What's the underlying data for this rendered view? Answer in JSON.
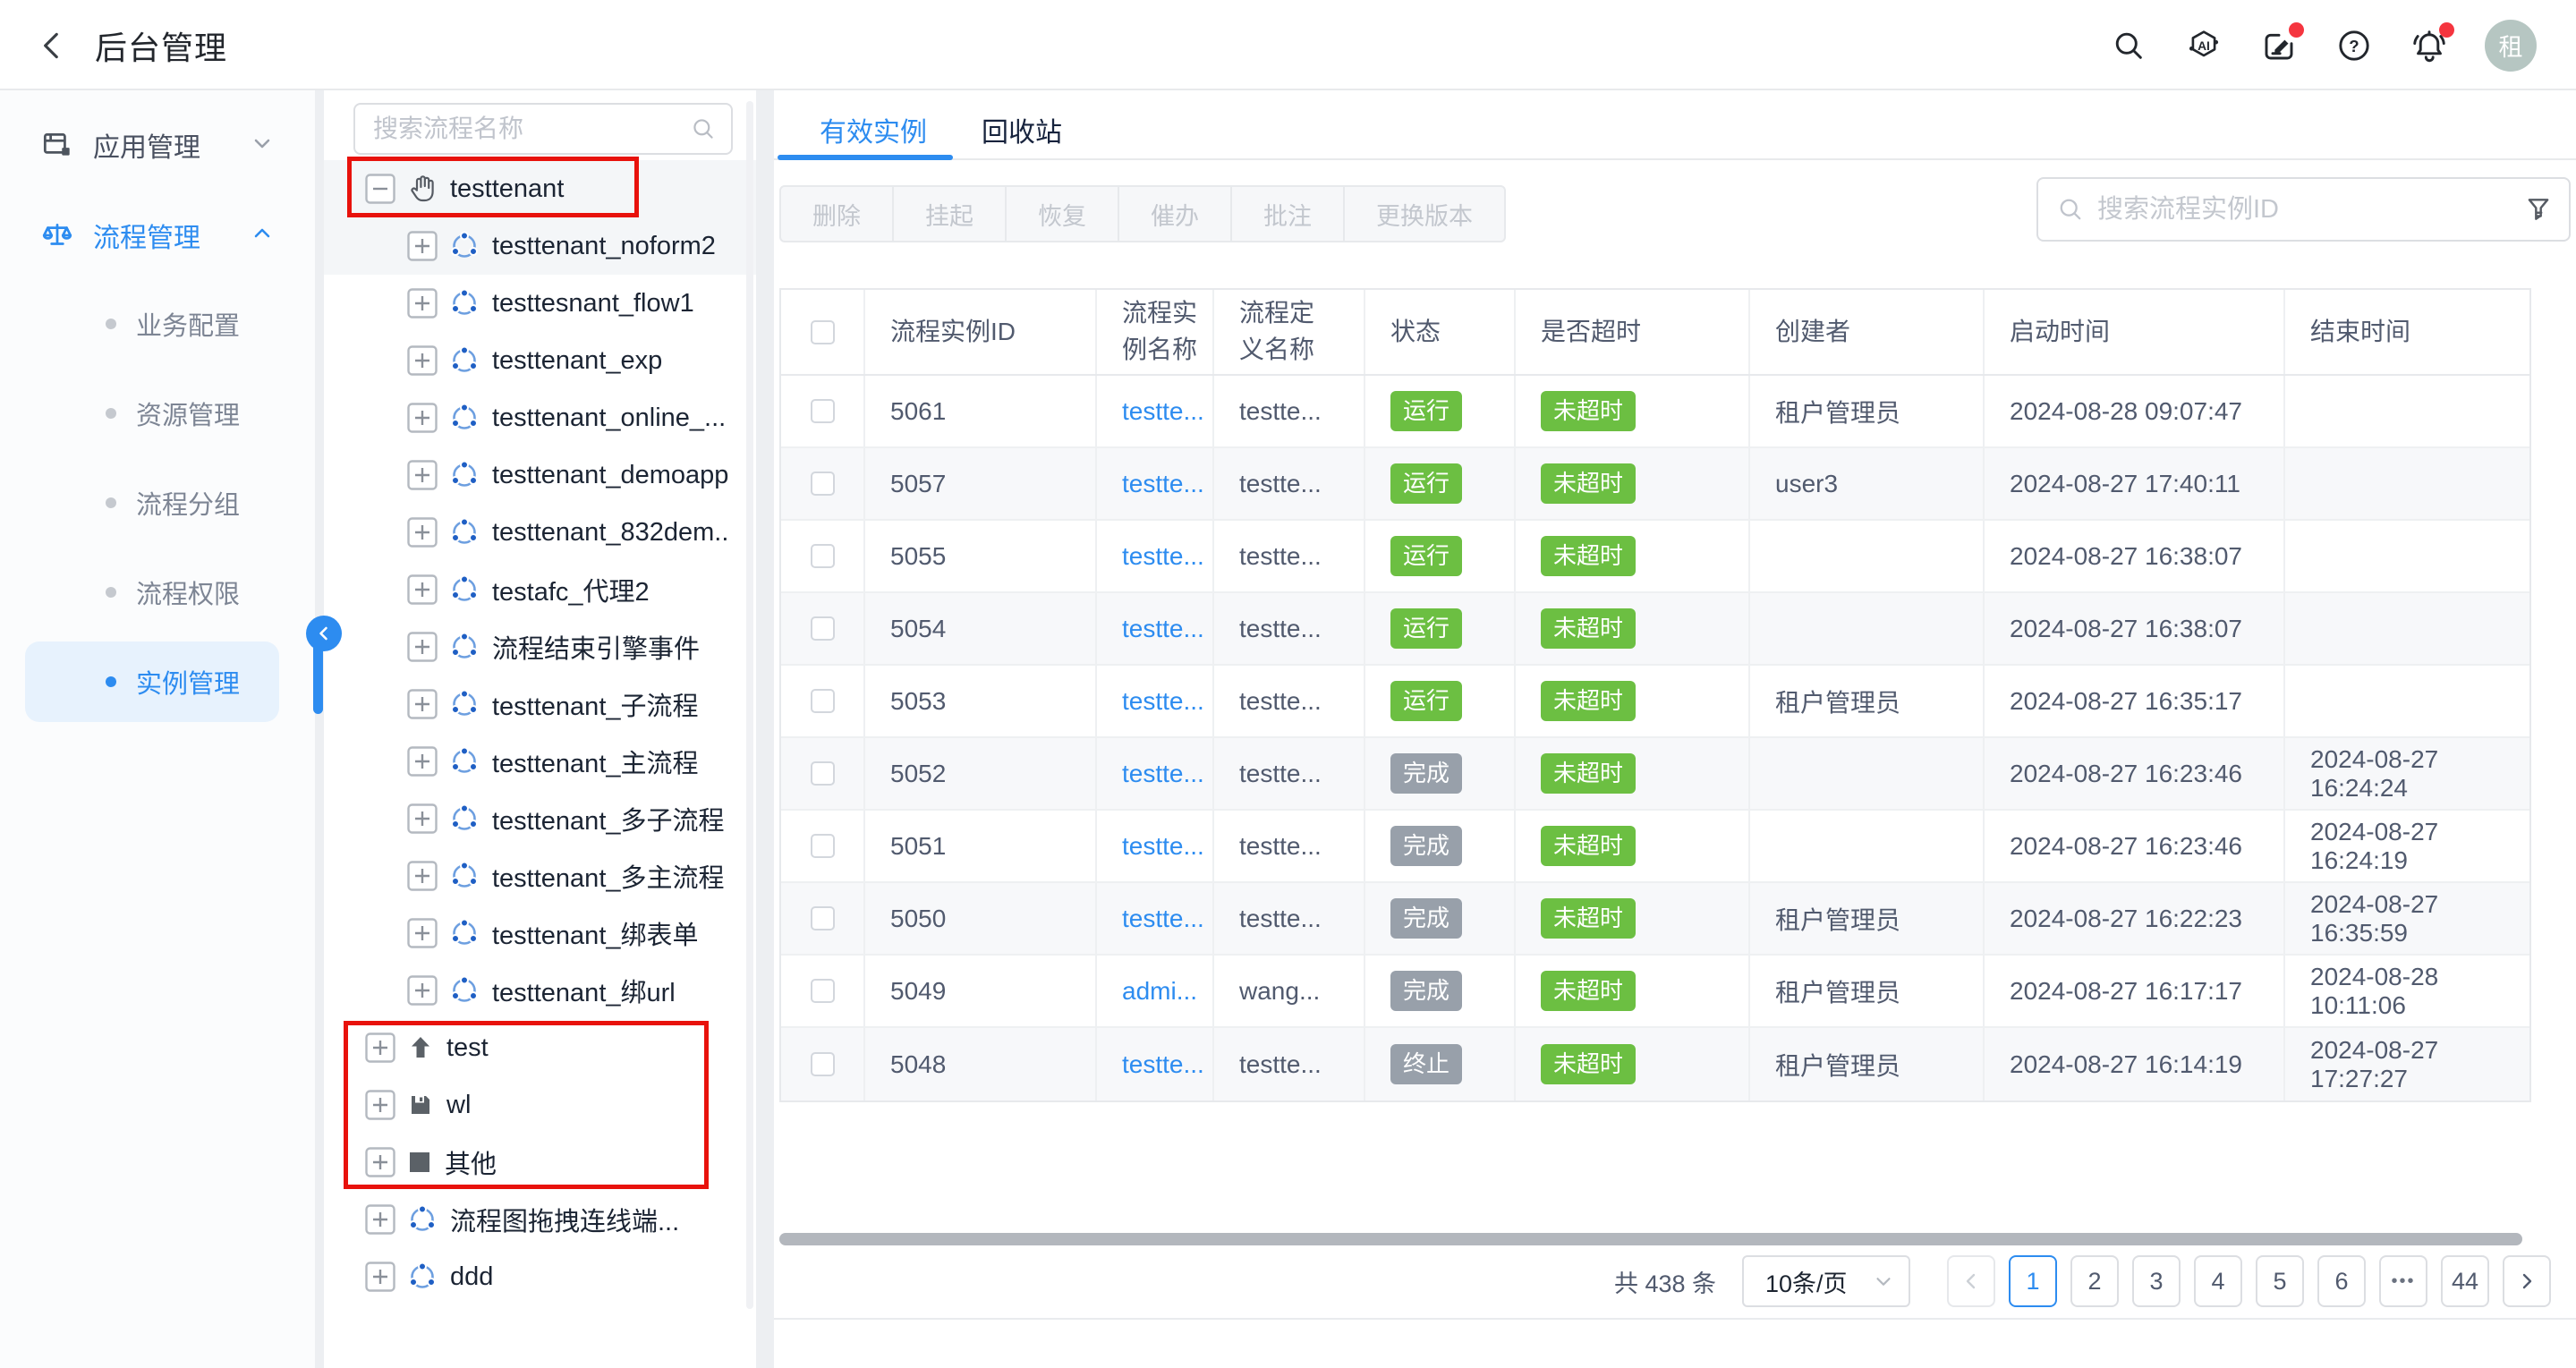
{
  "colors": {
    "primary": "#2d8cf0",
    "badge_green": "#6cbf42",
    "badge_gray": "#98a0aa",
    "annotation_red": "#e8120c",
    "notification_red": "#f5353f"
  },
  "header": {
    "title": "后台管理",
    "avatar_text": "租",
    "icons": [
      "search-icon",
      "ai-assistant-icon",
      "feedback-icon",
      "help-icon",
      "bell-icon"
    ]
  },
  "sidebar": {
    "groups": [
      {
        "label": "应用管理",
        "icon": "app-window-icon",
        "chevron": "down",
        "active": false
      },
      {
        "label": "流程管理",
        "icon": "process-scale-icon",
        "chevron": "up",
        "active": true
      }
    ],
    "sub_items": [
      {
        "label": "业务配置",
        "active": false
      },
      {
        "label": "资源管理",
        "active": false
      },
      {
        "label": "流程分组",
        "active": false
      },
      {
        "label": "流程权限",
        "active": false
      },
      {
        "label": "实例管理",
        "active": true
      }
    ]
  },
  "tree": {
    "search_placeholder": "搜索流程名称",
    "items": [
      {
        "label": "testtenant",
        "level": "root",
        "expander": "minus",
        "icon": "hand-icon",
        "selected": true
      },
      {
        "label": "testtenant_noform2",
        "level": "child",
        "expander": "plus",
        "icon": "process-icon",
        "selected": true
      },
      {
        "label": "testtesnant_flow1",
        "level": "child",
        "expander": "plus",
        "icon": "process-icon",
        "selected": false
      },
      {
        "label": "testtenant_exp",
        "level": "child",
        "expander": "plus",
        "icon": "process-icon",
        "selected": false
      },
      {
        "label": "testtenant_online_...",
        "level": "child",
        "expander": "plus",
        "icon": "process-icon",
        "selected": false
      },
      {
        "label": "testtenant_demoapp",
        "level": "child",
        "expander": "plus",
        "icon": "process-icon",
        "selected": false
      },
      {
        "label": "testtenant_832dem..",
        "level": "child",
        "expander": "plus",
        "icon": "process-icon",
        "selected": false
      },
      {
        "label": "testafc_代理2",
        "level": "child",
        "expander": "plus",
        "icon": "process-icon",
        "selected": false
      },
      {
        "label": "流程结束引擎事件",
        "level": "child",
        "expander": "plus",
        "icon": "process-icon",
        "selected": false
      },
      {
        "label": "testtenant_子流程",
        "level": "child",
        "expander": "plus",
        "icon": "process-icon",
        "selected": false
      },
      {
        "label": "testtenant_主流程",
        "level": "child",
        "expander": "plus",
        "icon": "process-icon",
        "selected": false
      },
      {
        "label": "testtenant_多子流程",
        "level": "child",
        "expander": "plus",
        "icon": "process-icon",
        "selected": false
      },
      {
        "label": "testtenant_多主流程",
        "level": "child",
        "expander": "plus",
        "icon": "process-icon",
        "selected": false
      },
      {
        "label": "testtenant_绑表单",
        "level": "child",
        "expander": "plus",
        "icon": "process-icon",
        "selected": false
      },
      {
        "label": "testtenant_绑url",
        "level": "child",
        "expander": "plus",
        "icon": "process-icon",
        "selected": false
      },
      {
        "label": "test",
        "level": "root",
        "expander": "plus",
        "icon": "upload-icon",
        "selected": false
      },
      {
        "label": "wl",
        "level": "root",
        "expander": "plus",
        "icon": "save-icon",
        "selected": false
      },
      {
        "label": "其他",
        "level": "root",
        "expander": "plus",
        "icon": "square-icon",
        "selected": false
      },
      {
        "label": "流程图拖拽连线端...",
        "level": "root",
        "expander": "plus",
        "icon": "process-icon",
        "selected": false
      },
      {
        "label": "ddd",
        "level": "root",
        "expander": "plus",
        "icon": "process-icon",
        "selected": false
      }
    ]
  },
  "main": {
    "tabs": [
      {
        "label": "有效实例",
        "active": true
      },
      {
        "label": "回收站",
        "active": false
      }
    ],
    "toolbar": [
      "删除",
      "挂起",
      "恢复",
      "催办",
      "批注",
      "更换版本"
    ],
    "search_placeholder": "搜索流程实例ID",
    "table": {
      "columns": [
        "",
        "流程实例ID",
        "流程实例名称",
        "流程定义名称",
        "状态",
        "是否超时",
        "创建者",
        "启动时间",
        "结束时间"
      ],
      "rows": [
        {
          "id": "5061",
          "name": "testte...",
          "def": "testte...",
          "status": "运行",
          "status_type": "run",
          "timeout": "未超时",
          "creator": "租户管理员",
          "start": "2024-08-28 09:07:47",
          "end": ""
        },
        {
          "id": "5057",
          "name": "testte...",
          "def": "testte...",
          "status": "运行",
          "status_type": "run",
          "timeout": "未超时",
          "creator": "user3",
          "start": "2024-08-27 17:40:11",
          "end": ""
        },
        {
          "id": "5055",
          "name": "testte...",
          "def": "testte...",
          "status": "运行",
          "status_type": "run",
          "timeout": "未超时",
          "creator": "",
          "start": "2024-08-27 16:38:07",
          "end": ""
        },
        {
          "id": "5054",
          "name": "testte...",
          "def": "testte...",
          "status": "运行",
          "status_type": "run",
          "timeout": "未超时",
          "creator": "",
          "start": "2024-08-27 16:38:07",
          "end": ""
        },
        {
          "id": "5053",
          "name": "testte...",
          "def": "testte...",
          "status": "运行",
          "status_type": "run",
          "timeout": "未超时",
          "creator": "租户管理员",
          "start": "2024-08-27 16:35:17",
          "end": ""
        },
        {
          "id": "5052",
          "name": "testte...",
          "def": "testte...",
          "status": "完成",
          "status_type": "done",
          "timeout": "未超时",
          "creator": "",
          "start": "2024-08-27 16:23:46",
          "end": "2024-08-27 16:24:24"
        },
        {
          "id": "5051",
          "name": "testte...",
          "def": "testte...",
          "status": "完成",
          "status_type": "done",
          "timeout": "未超时",
          "creator": "",
          "start": "2024-08-27 16:23:46",
          "end": "2024-08-27 16:24:19"
        },
        {
          "id": "5050",
          "name": "testte...",
          "def": "testte...",
          "status": "完成",
          "status_type": "done",
          "timeout": "未超时",
          "creator": "租户管理员",
          "start": "2024-08-27 16:22:23",
          "end": "2024-08-27 16:35:59"
        },
        {
          "id": "5049",
          "name": "admi...",
          "def": "wang...",
          "status": "完成",
          "status_type": "done",
          "timeout": "未超时",
          "creator": "租户管理员",
          "start": "2024-08-27 16:17:17",
          "end": "2024-08-28 10:11:06"
        },
        {
          "id": "5048",
          "name": "testte...",
          "def": "testte...",
          "status": "终止",
          "status_type": "term",
          "timeout": "未超时",
          "creator": "租户管理员",
          "start": "2024-08-27 16:14:19",
          "end": "2024-08-27 17:27:27"
        }
      ]
    },
    "pagination": {
      "total": "共 438 条",
      "page_size": "10条/页",
      "pages": [
        "1",
        "2",
        "3",
        "4",
        "5",
        "6",
        "•••",
        "44"
      ],
      "active_page": "1"
    }
  }
}
